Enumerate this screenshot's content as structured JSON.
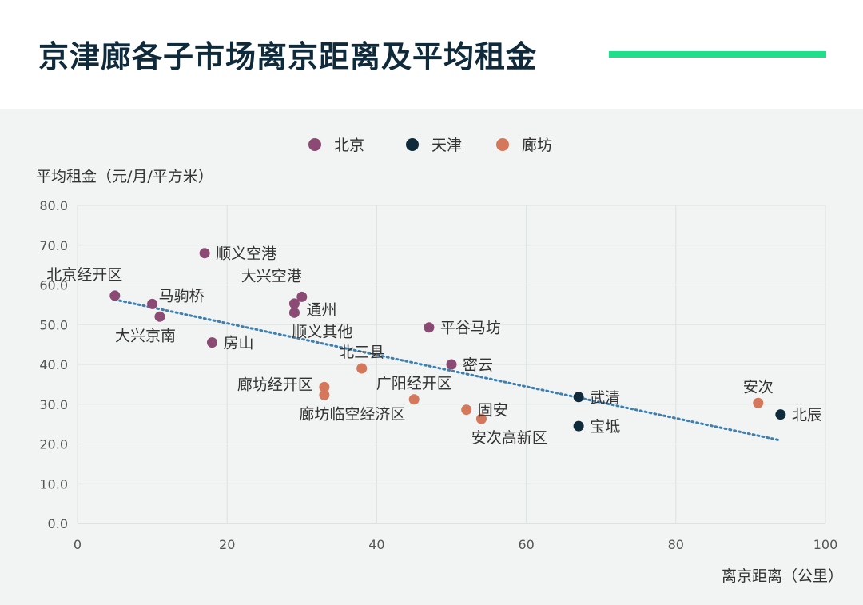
{
  "header": {
    "title": "京津廊各子市场离京距离及平均租金",
    "accent_color": "#1fe08a"
  },
  "chart_data": {
    "type": "scatter",
    "title": "京津廊各子市场离京距离及平均租金",
    "xlabel": "离京距离（公里）",
    "ylabel": "平均租金（元/月/平方米）",
    "xlim": [
      0,
      100
    ],
    "ylim": [
      0,
      80
    ],
    "x_ticks": [
      0,
      20,
      40,
      60,
      80,
      100
    ],
    "y_ticks": [
      0,
      10,
      20,
      30,
      40,
      50,
      60,
      70,
      80
    ],
    "grid": true,
    "legend_position": "top-center",
    "series": [
      {
        "name": "北京",
        "color": "#8a4a73",
        "points": [
          {
            "label": "北京经开区",
            "x": 5,
            "y": 57.3,
            "label_pos": "above-left"
          },
          {
            "label": "马驹桥",
            "x": 10,
            "y": 55.2,
            "label_pos": "above-right"
          },
          {
            "label": "大兴京南",
            "x": 11,
            "y": 52.0,
            "label_pos": "below-left"
          },
          {
            "label": "顺义空港",
            "x": 17,
            "y": 68.0,
            "label_pos": "right"
          },
          {
            "label": "房山",
            "x": 18,
            "y": 45.5,
            "label_pos": "right"
          },
          {
            "label": "大兴空港",
            "x": 30,
            "y": 57.0,
            "label_pos": "above-left"
          },
          {
            "label": "通州",
            "x": 29,
            "y": 55.3,
            "label_pos": "right-below"
          },
          {
            "label": "顺义其他",
            "x": 29,
            "y": 53.0,
            "label_pos": "below"
          },
          {
            "label": "平谷马坊",
            "x": 47,
            "y": 49.3,
            "label_pos": "right"
          },
          {
            "label": "密云",
            "x": 50,
            "y": 40.0,
            "label_pos": "right"
          }
        ]
      },
      {
        "name": "天津",
        "color": "#0f2a3a",
        "points": [
          {
            "label": "武清",
            "x": 67,
            "y": 31.8,
            "label_pos": "right"
          },
          {
            "label": "宝坻",
            "x": 67,
            "y": 24.5,
            "label_pos": "right"
          },
          {
            "label": "北辰",
            "x": 94,
            "y": 27.4,
            "label_pos": "right"
          }
        ]
      },
      {
        "name": "廊坊",
        "color": "#d4775a",
        "points": [
          {
            "label": "北三县",
            "x": 38,
            "y": 39.0,
            "label_pos": "above"
          },
          {
            "label": "廊坊经开区",
            "x": 33,
            "y": 34.3,
            "label_pos": "left"
          },
          {
            "label": "廊坊临空经济区",
            "x": 33,
            "y": 32.3,
            "label_pos": "below"
          },
          {
            "label": "广阳经开区",
            "x": 45,
            "y": 31.2,
            "label_pos": "above"
          },
          {
            "label": "固安",
            "x": 52,
            "y": 28.6,
            "label_pos": "right"
          },
          {
            "label": "安次高新区",
            "x": 54,
            "y": 26.3,
            "label_pos": "below"
          },
          {
            "label": "安次",
            "x": 91,
            "y": 30.3,
            "label_pos": "above"
          }
        ]
      }
    ],
    "trendline": {
      "style": "dotted",
      "color": "#3f7fb0",
      "x": [
        5,
        94
      ],
      "y": [
        56.3,
        20.9
      ]
    }
  }
}
